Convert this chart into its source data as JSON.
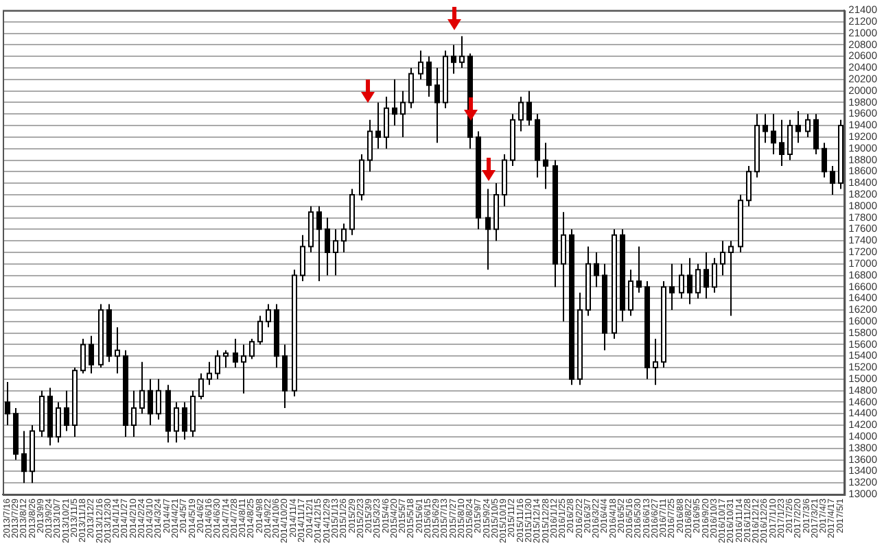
{
  "chart_data": {
    "type": "candlestick",
    "categories": [
      "2013/7/16",
      "2013/7/29",
      "2013/8/12",
      "2013/8/26",
      "2013/9/9",
      "2013/9/24",
      "2013/10/7",
      "2013/10/21",
      "2013/11/5",
      "2013/11/18",
      "2013/12/2",
      "2013/12/16",
      "2013/12/30",
      "2014/1/14",
      "2014/1/27",
      "2014/2/10",
      "2014/2/24",
      "2014/3/10",
      "2014/3/24",
      "2014/4/7",
      "2014/4/21",
      "2014/5/7",
      "2014/5/19",
      "2014/6/2",
      "2014/6/16",
      "2014/6/30",
      "2014/7/14",
      "2014/7/28",
      "2014/8/11",
      "2014/8/25",
      "2014/9/8",
      "2014/9/22",
      "2014/10/6",
      "2014/10/20",
      "2014/11/4",
      "2014/11/17",
      "2014/12/1",
      "2014/12/15",
      "2014/12/29",
      "2015/1/13",
      "2015/1/26",
      "2015/2/9",
      "2015/2/23",
      "2015/3/9",
      "2015/3/23",
      "2015/4/6",
      "2015/4/20",
      "2015/5/7",
      "2015/5/18",
      "2015/6/1",
      "2015/6/15",
      "2015/6/29",
      "2015/7/13",
      "2015/7/27",
      "2015/8/10",
      "2015/8/24",
      "2015/9/7",
      "2015/9/24",
      "2015/10/5",
      "2015/10/19",
      "2015/11/2",
      "2015/11/16",
      "2015/11/30",
      "2015/12/14",
      "2015/12/28",
      "2016/1/12",
      "2016/1/25",
      "2016/2/8",
      "2016/2/22",
      "2016/3/7",
      "2016/3/22",
      "2016/4/4",
      "2016/4/18",
      "2016/5/2",
      "2016/5/16",
      "2016/5/30",
      "2016/6/13",
      "2016/6/27",
      "2016/7/11",
      "2016/7/25",
      "2016/8/8",
      "2016/8/22",
      "2016/9/5",
      "2016/9/20",
      "2016/10/3",
      "2016/10/17",
      "2016/10/31",
      "2016/11/14",
      "2016/11/28",
      "2016/12/12",
      "2016/12/26",
      "2017/1/10",
      "2017/1/23",
      "2017/2/6",
      "2017/2/20",
      "2017/3/6",
      "2017/3/21",
      "2017/4/3",
      "2017/4/17",
      "2017/5/1"
    ],
    "ohlc": [
      [
        14600,
        14950,
        14200,
        14400
      ],
      [
        14400,
        14500,
        13600,
        13700
      ],
      [
        13700,
        14100,
        13200,
        13400
      ],
      [
        13400,
        14200,
        13200,
        14100
      ],
      [
        14100,
        14800,
        14000,
        14700
      ],
      [
        14700,
        14850,
        13850,
        14000
      ],
      [
        14000,
        14600,
        13900,
        14500
      ],
      [
        14500,
        14800,
        14100,
        14200
      ],
      [
        14200,
        15200,
        14000,
        15150
      ],
      [
        15150,
        15700,
        15100,
        15600
      ],
      [
        15600,
        15750,
        15100,
        15250
      ],
      [
        15250,
        16300,
        15200,
        16200
      ],
      [
        16200,
        16300,
        15300,
        15400
      ],
      [
        15400,
        15900,
        15100,
        15500
      ],
      [
        15400,
        15500,
        14000,
        14200
      ],
      [
        14200,
        14800,
        14000,
        14500
      ],
      [
        14500,
        15300,
        14400,
        14800
      ],
      [
        14800,
        15000,
        14200,
        14400
      ],
      [
        14400,
        15000,
        14300,
        14800
      ],
      [
        14800,
        14900,
        13900,
        14100
      ],
      [
        14100,
        14600,
        13900,
        14500
      ],
      [
        14500,
        14600,
        13950,
        14100
      ],
      [
        14100,
        14800,
        14000,
        14700
      ],
      [
        14700,
        15100,
        14650,
        15000
      ],
      [
        15000,
        15300,
        14900,
        15100
      ],
      [
        15100,
        15500,
        15000,
        15400
      ],
      [
        15400,
        15500,
        15200,
        15450
      ],
      [
        15450,
        15700,
        15200,
        15300
      ],
      [
        15300,
        15600,
        14750,
        15400
      ],
      [
        15400,
        15700,
        15350,
        15650
      ],
      [
        15650,
        16100,
        15600,
        16000
      ],
      [
        16000,
        16300,
        15900,
        16200
      ],
      [
        16200,
        16300,
        15200,
        15400
      ],
      [
        15400,
        15600,
        14500,
        14800
      ],
      [
        14800,
        16900,
        14700,
        16800
      ],
      [
        16800,
        17500,
        16700,
        17300
      ],
      [
        17300,
        18000,
        17200,
        17900
      ],
      [
        17900,
        18000,
        16700,
        17600
      ],
      [
        17600,
        17800,
        16800,
        17200
      ],
      [
        17200,
        17600,
        16800,
        17400
      ],
      [
        17400,
        17700,
        17200,
        17600
      ],
      [
        17600,
        18300,
        17500,
        18200
      ],
      [
        18200,
        18900,
        18100,
        18800
      ],
      [
        18800,
        19500,
        18600,
        19300
      ],
      [
        19300,
        19800,
        19000,
        19200
      ],
      [
        19200,
        19900,
        19000,
        19700
      ],
      [
        19700,
        20200,
        19400,
        19600
      ],
      [
        19600,
        20000,
        19200,
        19800
      ],
      [
        19800,
        20400,
        19700,
        20300
      ],
      [
        20300,
        20700,
        20200,
        20500
      ],
      [
        20500,
        20600,
        19900,
        20100
      ],
      [
        20100,
        20400,
        19100,
        19800
      ],
      [
        19800,
        20700,
        19700,
        20600
      ],
      [
        20600,
        20800,
        20300,
        20500
      ],
      [
        20500,
        20950,
        20400,
        20600
      ],
      [
        20600,
        20650,
        19000,
        19200
      ],
      [
        19200,
        19300,
        17600,
        17800
      ],
      [
        17800,
        18300,
        16900,
        17600
      ],
      [
        17600,
        18400,
        17400,
        18200
      ],
      [
        18200,
        18900,
        18000,
        18800
      ],
      [
        18800,
        19600,
        18700,
        19500
      ],
      [
        19500,
        19900,
        19300,
        19800
      ],
      [
        19800,
        20000,
        19400,
        19500
      ],
      [
        19500,
        19600,
        18500,
        18800
      ],
      [
        18800,
        19100,
        18300,
        18700
      ],
      [
        18700,
        18800,
        16600,
        17000
      ],
      [
        17000,
        17900,
        16000,
        17500
      ],
      [
        17500,
        17600,
        14900,
        15000
      ],
      [
        15000,
        16500,
        14900,
        16200
      ],
      [
        16200,
        17300,
        16100,
        17000
      ],
      [
        17000,
        17200,
        16600,
        16800
      ],
      [
        16800,
        17000,
        15500,
        15800
      ],
      [
        15800,
        17600,
        15700,
        17500
      ],
      [
        17500,
        17600,
        16000,
        16200
      ],
      [
        16200,
        16900,
        16100,
        16700
      ],
      [
        16700,
        17300,
        16500,
        16600
      ],
      [
        16600,
        16700,
        15000,
        15200
      ],
      [
        15200,
        15700,
        14900,
        15300
      ],
      [
        15300,
        16700,
        15200,
        16600
      ],
      [
        16600,
        17000,
        16200,
        16500
      ],
      [
        16500,
        17000,
        16400,
        16800
      ],
      [
        16800,
        17100,
        16300,
        16500
      ],
      [
        16500,
        17000,
        16400,
        16900
      ],
      [
        16900,
        17200,
        16400,
        16600
      ],
      [
        16600,
        17100,
        16500,
        17000
      ],
      [
        17000,
        17400,
        16800,
        17200
      ],
      [
        17200,
        17400,
        16100,
        17300
      ],
      [
        17300,
        18200,
        17200,
        18100
      ],
      [
        18100,
        18700,
        18000,
        18600
      ],
      [
        18600,
        19600,
        18500,
        19400
      ],
      [
        19400,
        19600,
        19100,
        19300
      ],
      [
        19300,
        19600,
        18900,
        19100
      ],
      [
        19100,
        19500,
        18700,
        18900
      ],
      [
        18900,
        19500,
        18800,
        19400
      ],
      [
        19400,
        19650,
        19100,
        19300
      ],
      [
        19300,
        19600,
        19200,
        19500
      ],
      [
        19500,
        19600,
        18900,
        19000
      ],
      [
        19000,
        19100,
        18500,
        18600
      ],
      [
        18600,
        18700,
        18200,
        18400
      ],
      [
        18400,
        19500,
        18300,
        19400
      ]
    ],
    "ylim": [
      13000,
      21400
    ],
    "yticks": [
      13000,
      13200,
      13400,
      13600,
      13800,
      14000,
      14200,
      14400,
      14600,
      14800,
      15000,
      15200,
      15400,
      15600,
      15800,
      16000,
      16200,
      16400,
      16600,
      16800,
      17000,
      17200,
      17400,
      17600,
      17800,
      18000,
      18200,
      18400,
      18600,
      18800,
      19000,
      19200,
      19400,
      19600,
      19800,
      20000,
      20200,
      20400,
      20600,
      20800,
      21000,
      21200,
      21400
    ],
    "grid": "y"
  }
}
